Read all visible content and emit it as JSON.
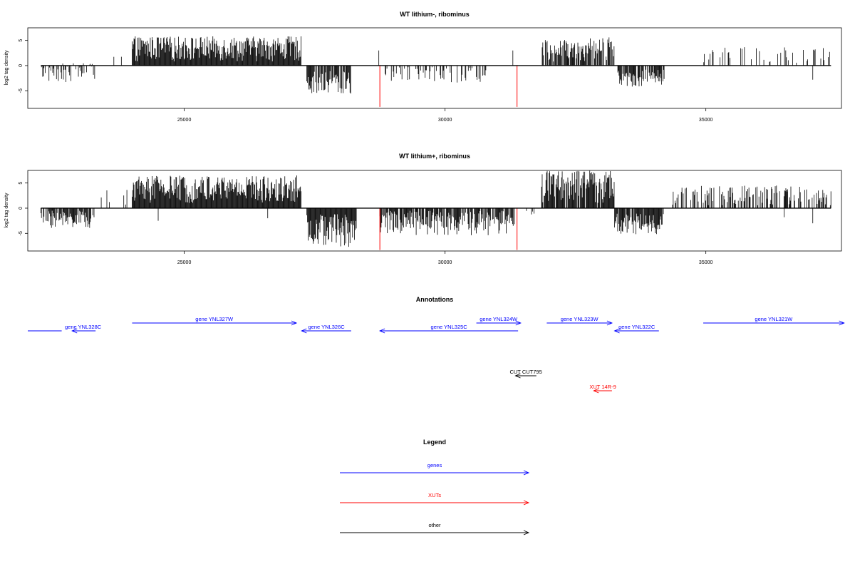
{
  "colors": {
    "genes": "#0000ff",
    "xuts": "#ff0000",
    "other": "#000000",
    "bars": "#000000",
    "highlight": "#ff0000"
  },
  "chart_data": [
    {
      "type": "bar",
      "title": "WT lithium-, ribominus",
      "ylabel": "log2 tag density",
      "xlim": [
        22000,
        37600
      ],
      "ylim": [
        -8.5,
        7.5
      ],
      "xticks": [
        25000,
        30000,
        35000
      ],
      "xtick_labels": [
        "25000",
        "30000",
        "35000"
      ],
      "yticks": [
        5,
        0,
        -5
      ],
      "ytick_labels": [
        "5",
        "0",
        "-5"
      ],
      "highlight_bars": [
        {
          "x": 28750,
          "y": -8.2
        },
        {
          "x": 31380,
          "y": -8.2
        }
      ],
      "regions": [
        {
          "from": 22250,
          "to": 23300,
          "min": -3.5,
          "max": 0.5,
          "density": 0.5
        },
        {
          "from": 23650,
          "to": 23900,
          "min": 0,
          "max": 2.5,
          "density": 0.15
        },
        {
          "from": 24000,
          "to": 27250,
          "min": 0.8,
          "max": 5.8,
          "density": 1.0
        },
        {
          "from": 27350,
          "to": 28200,
          "min": -6.0,
          "max": -0.8,
          "density": 0.8
        },
        {
          "from": 28850,
          "to": 30800,
          "min": -3.5,
          "max": -0.3,
          "density": 0.3
        },
        {
          "from": 31850,
          "to": 32700,
          "min": 0.8,
          "max": 5.2,
          "density": 0.7
        },
        {
          "from": 32700,
          "to": 33250,
          "min": 1.0,
          "max": 5.8,
          "density": 0.7
        },
        {
          "from": 33300,
          "to": 34200,
          "min": -4.3,
          "max": -0.8,
          "density": 0.7
        },
        {
          "from": 34900,
          "to": 37400,
          "min": 0.5,
          "max": 3.7,
          "density": 0.2
        }
      ],
      "extra_bars": [
        {
          "x": 28730,
          "y": 3.0
        },
        {
          "x": 31300,
          "y": 3.0
        },
        {
          "x": 37050,
          "y": -2.8
        }
      ]
    },
    {
      "type": "bar",
      "title": "WT lithium+, ribominus",
      "ylabel": "log2 tag density",
      "xlim": [
        22000,
        37600
      ],
      "ylim": [
        -8.5,
        7.5
      ],
      "xticks": [
        25000,
        30000,
        35000
      ],
      "xtick_labels": [
        "25000",
        "30000",
        "35000"
      ],
      "yticks": [
        5,
        0,
        -5
      ],
      "ytick_labels": [
        "5",
        "0",
        "-5"
      ],
      "highlight_bars": [
        {
          "x": 28750,
          "y": -8.3
        },
        {
          "x": 31380,
          "y": -8.3
        }
      ],
      "regions": [
        {
          "from": 22250,
          "to": 23300,
          "min": -4.0,
          "max": -0.5,
          "density": 0.8
        },
        {
          "from": 23300,
          "to": 23900,
          "min": 0,
          "max": 4.0,
          "density": 0.15
        },
        {
          "from": 24000,
          "to": 27250,
          "min": 1.0,
          "max": 6.5,
          "density": 1.0
        },
        {
          "from": 27350,
          "to": 28300,
          "min": -8.0,
          "max": -1.0,
          "density": 1.0
        },
        {
          "from": 28750,
          "to": 31350,
          "min": -5.5,
          "max": -0.5,
          "density": 0.8
        },
        {
          "from": 31500,
          "to": 31750,
          "min": -1.5,
          "max": 0,
          "density": 0.2
        },
        {
          "from": 31850,
          "to": 33250,
          "min": 1.0,
          "max": 7.5,
          "density": 0.9
        },
        {
          "from": 33250,
          "to": 34200,
          "min": -5.2,
          "max": -1.0,
          "density": 0.9
        },
        {
          "from": 34350,
          "to": 37400,
          "min": 0.5,
          "max": 4.5,
          "density": 0.5
        }
      ],
      "extra_bars": [
        {
          "x": 24500,
          "y": -2.5
        },
        {
          "x": 26600,
          "y": -2.0
        },
        {
          "x": 36500,
          "y": -1.8
        },
        {
          "x": 37050,
          "y": -3.0
        }
      ]
    }
  ],
  "annotations": {
    "title": "Annotations",
    "xlim": [
      22000,
      37600
    ],
    "items": [
      {
        "label": "gene YNL328C",
        "from": 22000,
        "to": 22650,
        "dir": "none",
        "row": 1,
        "color": "#0000ff"
      },
      {
        "label": "",
        "from": 23300,
        "to": 22850,
        "dir": "left",
        "row": 1,
        "color": "#0000ff"
      },
      {
        "label": "gene YNL327W",
        "from": 24000,
        "to": 27150,
        "dir": "right",
        "row": 0,
        "color": "#0000ff"
      },
      {
        "label": "gene YNL326C",
        "from": 28200,
        "to": 27250,
        "dir": "left",
        "row": 1,
        "color": "#0000ff"
      },
      {
        "label": "gene YNL325C",
        "from": 31400,
        "to": 28750,
        "dir": "left",
        "row": 1,
        "color": "#0000ff"
      },
      {
        "label": "gene YNL324W",
        "from": 30600,
        "to": 31450,
        "dir": "right",
        "row": 0,
        "color": "#0000ff"
      },
      {
        "label": "gene YNL323W",
        "from": 31950,
        "to": 33200,
        "dir": "right",
        "row": 0,
        "color": "#0000ff"
      },
      {
        "label": "gene YNL322C",
        "from": 34100,
        "to": 33250,
        "dir": "left",
        "row": 1,
        "color": "#0000ff"
      },
      {
        "label": "gene YNL321W",
        "from": 34950,
        "to": 37650,
        "dir": "right",
        "row": 0,
        "color": "#0000ff"
      },
      {
        "label": "CUT CUT795",
        "from": 31750,
        "to": 31350,
        "dir": "left",
        "row": 2,
        "color": "#000000"
      },
      {
        "label": "XUT 14R-9",
        "from": 33200,
        "to": 32850,
        "dir": "left",
        "row": 3,
        "color": "#ff0000"
      }
    ]
  },
  "legend": {
    "title": "Legend",
    "entries": [
      {
        "label": "genes",
        "color": "#0000ff"
      },
      {
        "label": "XUTs",
        "color": "#ff0000"
      },
      {
        "label": "other",
        "color": "#000000"
      }
    ]
  }
}
